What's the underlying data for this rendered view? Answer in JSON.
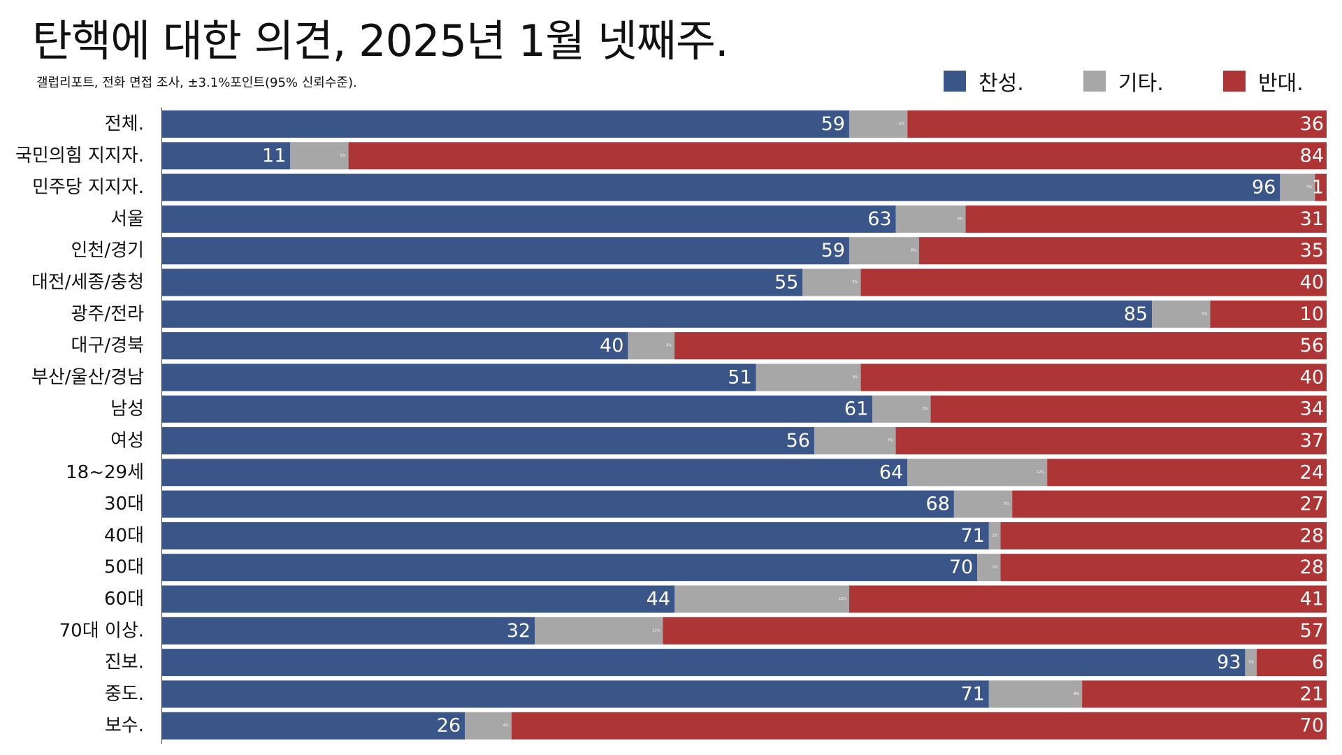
{
  "title": "탄핵에 대한 의견, 2025년 1월 넷째주.",
  "subtitle": "갤럽리포트, 전화 면접 조사, ±3.1%포인트(95% 신뢰수준).",
  "colors": {
    "support": "#3A5688",
    "other": "#A7A7A7",
    "oppose": "#AD3535",
    "label_text": "#ffffff",
    "axis": "#333333"
  },
  "chart_data": {
    "type": "bar",
    "orientation": "horizontal",
    "stacked": true,
    "xlim": [
      0,
      100
    ],
    "legend_position": "top-right",
    "categories": [
      "전체.",
      "국민의힘 지지자.",
      "민주당 지지자.",
      "서울",
      "인천/경기",
      "대전/세종/충청",
      "광주/전라",
      "대구/경북",
      "부산/울산/경남",
      "남성",
      "여성",
      "18~29세",
      "30대",
      "40대",
      "50대",
      "60대",
      "70대 이상.",
      "진보.",
      "중도.",
      "보수."
    ],
    "series": [
      {
        "name": "찬성.",
        "color": "#3A5688",
        "values": [
          59,
          11,
          96,
          63,
          59,
          55,
          85,
          40,
          51,
          61,
          56,
          64,
          68,
          71,
          70,
          44,
          32,
          93,
          71,
          26
        ]
      },
      {
        "name": "기타.",
        "color": "#A7A7A7",
        "values": [
          5,
          5,
          3,
          6,
          6,
          5,
          5,
          4,
          9,
          5,
          7,
          12,
          5,
          1,
          2,
          15,
          11,
          1,
          8,
          4
        ]
      },
      {
        "name": "반대.",
        "color": "#AD3535",
        "values": [
          36,
          84,
          1,
          31,
          35,
          40,
          10,
          56,
          40,
          34,
          37,
          24,
          27,
          28,
          28,
          41,
          57,
          6,
          21,
          70
        ]
      }
    ]
  }
}
